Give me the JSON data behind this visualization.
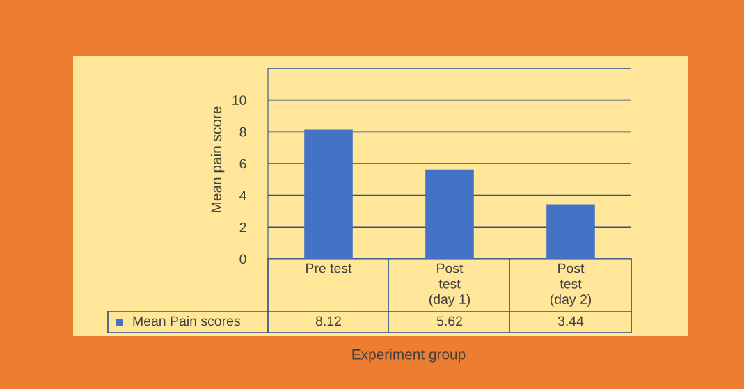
{
  "chart_data": {
    "type": "bar",
    "xlabel": "Experiment group",
    "ylabel": "Mean pain score",
    "categories": [
      "Pre test",
      "Post\ntest\n(day 1)",
      "Post\ntest\n(day 2)"
    ],
    "series": [
      {
        "name": "Mean Pain scores",
        "color": "#4472c4",
        "values": [
          8.12,
          5.62,
          3.44
        ]
      }
    ],
    "ylim": [
      0,
      12
    ],
    "yticks": [
      0,
      2,
      4,
      6,
      8,
      10,
      {
        "value": 12,
        "label": null
      }
    ],
    "grid": "y",
    "data_labels": true,
    "legend": "bottom"
  }
}
